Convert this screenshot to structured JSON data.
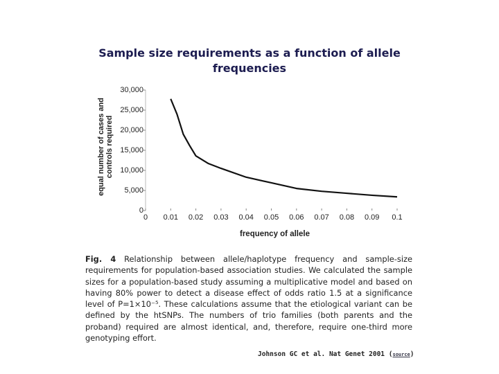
{
  "chart_data": {
    "type": "line",
    "title": "Sample size requirements as a function of allele frequencies",
    "xlabel": "frequency of allele",
    "ylabel": [
      "equal number of cases and",
      "controls required"
    ],
    "x": [
      0.01,
      0.0125,
      0.015,
      0.0175,
      0.02,
      0.025,
      0.03,
      0.04,
      0.05,
      0.06,
      0.07,
      0.08,
      0.09,
      0.1
    ],
    "series": [
      {
        "name": "sample size",
        "color": "#111111",
        "values": [
          27800,
          24000,
          19000,
          16200,
          13600,
          11700,
          10500,
          8300,
          6900,
          5500,
          4800,
          4300,
          3800,
          3400
        ]
      }
    ],
    "xlim": [
      0,
      0.1
    ],
    "xticks": [
      0,
      0.01,
      0.02,
      0.03,
      0.04,
      0.05,
      0.06,
      0.07,
      0.08,
      0.09,
      0.1
    ],
    "ylim": [
      0,
      30000
    ],
    "yticks": [
      0,
      {
        "value": 5000,
        "label": "5,000"
      },
      {
        "value": 10000,
        "label": "10,000"
      },
      {
        "value": 15000,
        "label": "15,000"
      },
      {
        "value": 20000,
        "label": "20,000"
      },
      {
        "value": 25000,
        "label": "25,000"
      },
      {
        "value": 30000,
        "label": "30,000"
      }
    ]
  },
  "caption": {
    "label": "Fig. 4",
    "text": "Relationship between allele/haplotype frequency and sample-size requirements for population-based association studies. We calculated the sample sizes for a population-based study assuming a multiplicative model and based on having 80% power to detect a disease effect of odds ratio 1.5 at a significance level of P=1×10⁻⁵. These calculations assume that the etiological variant can be defined by the htSNPs. The numbers of trio families (both parents and the proband) required are almost identical, and, therefore, require one-third more genotyping effort."
  },
  "citation": {
    "text": "Johnson GC et al. Nat Genet 2001",
    "link": "source"
  }
}
